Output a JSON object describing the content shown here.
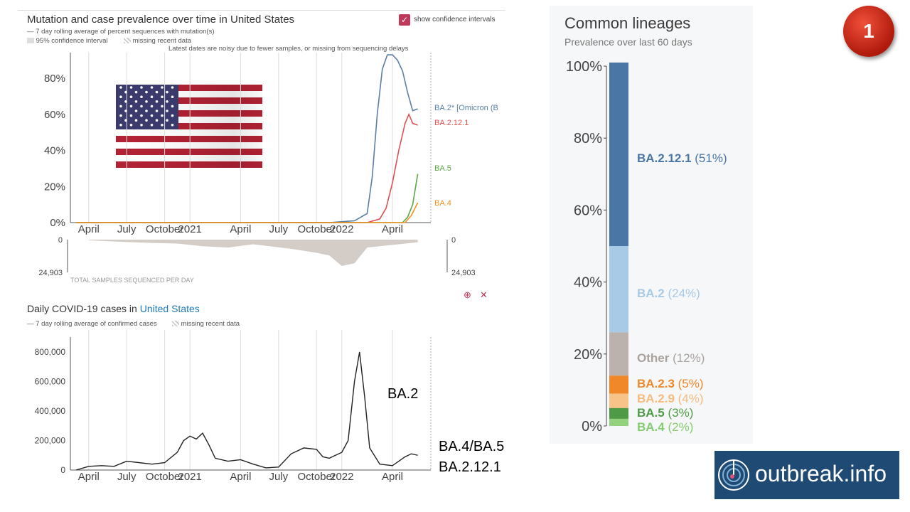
{
  "top_chart": {
    "title": "Mutation and case prevalence over time in United States",
    "legend_line": "7 day rolling average of percent sequences with mutation(s)",
    "legend_ci": "95% confidence interval",
    "legend_missing": "missing recent data",
    "note": "Latest dates are noisy due to fewer samples, or missing from sequencing delays",
    "checkbox_label": "show confidence intervals",
    "samples_label": "TOTAL SAMPLES SEQUENCED PER DAY",
    "samples_zero": "0",
    "samples_max": "24,903"
  },
  "cases_chart": {
    "title_prefix": "Daily COVID-19 cases in ",
    "title_location": "United States",
    "legend_line": "7 day rolling average of confirmed cases",
    "legend_missing": "missing recent data",
    "annot_ba2": "BA.2",
    "annot_ba45": "BA.4/BA.5",
    "annot_ba2121": "BA.2.12.1"
  },
  "lineages": {
    "title": "Common lineages",
    "subtitle": "Prevalence over last 60 days"
  },
  "badge": {
    "number": "1"
  },
  "logo": {
    "text": "outbreak.info"
  },
  "colors": {
    "ba2": "#5a80a8",
    "ba2121": "#e05050",
    "ba5": "#5aa845",
    "ba4": "#f09020",
    "stack_ba2121": "#4a76a6",
    "stack_ba2": "#a9cae6",
    "stack_other": "#bbb2ad",
    "stack_ba23": "#f0882a",
    "stack_ba29": "#f8c388",
    "stack_ba5": "#4f9a47",
    "stack_ba4": "#92d27f"
  },
  "chart_data": [
    {
      "type": "line",
      "title": "Mutation and case prevalence over time in United States",
      "x_tick_labels": [
        "April",
        "July",
        "October",
        "2021",
        "April",
        "July",
        "October",
        "2022",
        "April"
      ],
      "y_tick_labels": [
        "0%",
        "20%",
        "40%",
        "60%",
        "80%"
      ],
      "ylim": [
        0,
        95
      ],
      "x_months": [
        0,
        1,
        2,
        3,
        4,
        5,
        6,
        7,
        8,
        9,
        10,
        11,
        12,
        13,
        14,
        15,
        16,
        17,
        18,
        19,
        20,
        21,
        22,
        23,
        24,
        25,
        26,
        27
      ],
      "series": [
        {
          "name": "BA.2* [Omicron (B",
          "color": "#5a80a8",
          "x": [
            0,
            20,
            22,
            23,
            23.4,
            23.8,
            24.2,
            24.6,
            25,
            25.4,
            25.8,
            26.2,
            26.6,
            27
          ],
          "y": [
            0,
            0,
            1,
            5,
            25,
            60,
            85,
            93,
            93,
            90,
            84,
            72,
            62,
            63
          ]
        },
        {
          "name": "BA.2.12.1",
          "color": "#e05050",
          "x": [
            0,
            23,
            24,
            24.5,
            25,
            25.5,
            26,
            26.3,
            26.6,
            27
          ],
          "y": [
            0,
            0,
            2,
            8,
            22,
            40,
            55,
            60,
            55,
            54
          ]
        },
        {
          "name": "BA.5",
          "color": "#5aa845",
          "x": [
            0,
            25.8,
            26.2,
            26.6,
            27
          ],
          "y": [
            0,
            0,
            3,
            10,
            27
          ]
        },
        {
          "name": "BA.4",
          "color": "#f09020",
          "x": [
            0,
            26,
            26.5,
            27
          ],
          "y": [
            0,
            0,
            4,
            11
          ]
        }
      ]
    },
    {
      "type": "area",
      "title": "TOTAL SAMPLES SEQUENCED PER DAY",
      "ylim": [
        0,
        24903
      ],
      "y_tick_labels": [
        "0",
        "24,903"
      ],
      "x_months": [
        1,
        4,
        6,
        8,
        10,
        12,
        14,
        17,
        19,
        20,
        21,
        22,
        23,
        25,
        27
      ],
      "values": [
        500,
        1800,
        2500,
        3000,
        5000,
        6000,
        3500,
        7000,
        10000,
        12000,
        20000,
        18000,
        6000,
        4000,
        2000
      ]
    },
    {
      "type": "line",
      "title": "Daily COVID-19 cases in United States",
      "x_tick_labels": [
        "April",
        "July",
        "October",
        "2021",
        "April",
        "July",
        "October",
        "2022",
        "April"
      ],
      "y_tick_labels": [
        "0",
        "200,000",
        "400,000",
        "600,000",
        "800,000"
      ],
      "ylim": [
        0,
        850000
      ],
      "x_months": [
        0,
        1,
        2,
        3,
        4,
        5,
        6,
        7,
        8,
        8.5,
        9,
        9.5,
        10,
        10.5,
        11,
        12,
        13,
        14,
        15,
        16,
        17,
        18,
        19,
        19.5,
        20,
        21,
        21.5,
        22,
        22.4,
        22.8,
        23.2,
        24,
        25,
        26,
        26.5,
        27
      ],
      "values": [
        0,
        25000,
        30000,
        25000,
        60000,
        50000,
        40000,
        50000,
        120000,
        200000,
        230000,
        210000,
        250000,
        170000,
        80000,
        60000,
        70000,
        40000,
        15000,
        20000,
        110000,
        150000,
        140000,
        90000,
        80000,
        120000,
        200000,
        600000,
        800000,
        500000,
        150000,
        40000,
        30000,
        90000,
        110000,
        100000
      ]
    },
    {
      "type": "bar",
      "title": "Common lineages",
      "subtitle": "Prevalence over last 60 days",
      "stacked": true,
      "y_tick_labels": [
        "0%",
        "20%",
        "40%",
        "60%",
        "80%",
        "100%"
      ],
      "ylim": [
        0,
        100
      ],
      "series": [
        {
          "name": "BA.2.12.1",
          "value": 51,
          "label": "(51%)",
          "color": "#4a76a6",
          "text_color": "#4a76a6"
        },
        {
          "name": "BA.2",
          "value": 24,
          "label": "(24%)",
          "color": "#a9cae6",
          "text_color": "#a9cae6"
        },
        {
          "name": "Other",
          "value": 12,
          "label": "(12%)",
          "color": "#bbb2ad",
          "text_color": "#aaa29d"
        },
        {
          "name": "BA.2.3",
          "value": 5,
          "label": "(5%)",
          "color": "#f0882a",
          "text_color": "#f0882a"
        },
        {
          "name": "BA.2.9",
          "value": 4,
          "label": "(4%)",
          "color": "#f8c388",
          "text_color": "#f6bc7e"
        },
        {
          "name": "BA.5",
          "value": 3,
          "label": "(3%)",
          "color": "#4f9a47",
          "text_color": "#4f9a47"
        },
        {
          "name": "BA.4",
          "value": 2,
          "label": "(2%)",
          "color": "#92d27f",
          "text_color": "#85cc72"
        }
      ]
    }
  ]
}
